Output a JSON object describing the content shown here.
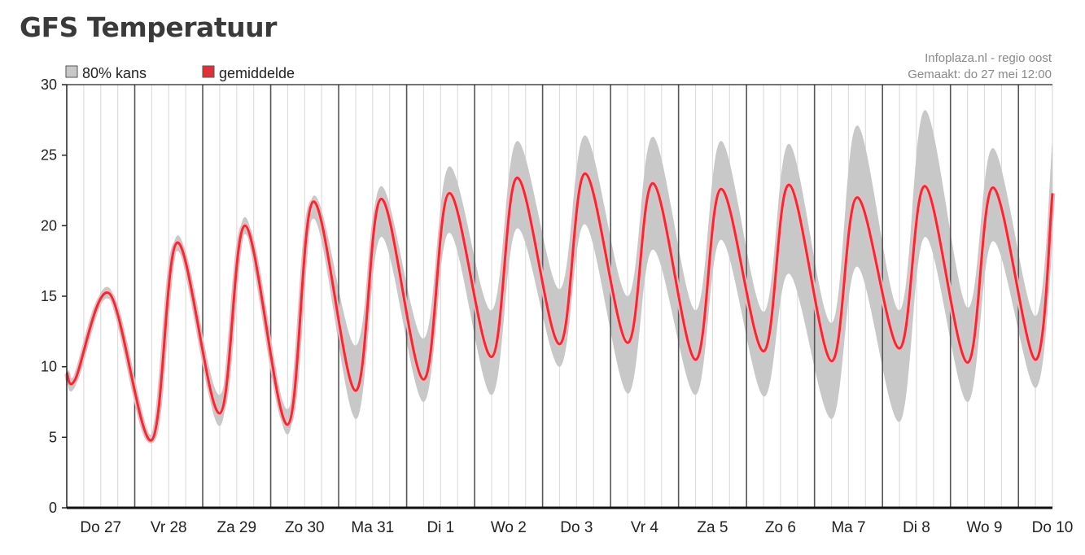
{
  "page": {
    "title": "GFS Temperatuur"
  },
  "chart_data": {
    "type": "area",
    "title": "GFS Temperatuur",
    "xlabel": "",
    "ylabel": "",
    "ylim": [
      0,
      30
    ],
    "xlim": [
      "2021-05-27T00:00",
      "2021-06-10T12:00"
    ],
    "y_ticks": [
      0,
      5,
      10,
      15,
      20,
      25,
      30
    ],
    "categories": [
      "Do 27",
      "Vr 28",
      "Za 29",
      "Zo 30",
      "Ma 31",
      "Di 1",
      "Wo 2",
      "Do 3",
      "Vr 4",
      "Za 5",
      "Zo 6",
      "Ma 7",
      "Di 8",
      "Wo 9",
      "Do 10"
    ],
    "grid": true,
    "legend_position": "top-left",
    "colors": {
      "band": "#c8c8c8",
      "mean": "#e0303a",
      "mean_halo": "#f2b8bd",
      "grid_day": "#555555",
      "grid_minor": "#dddddd"
    },
    "series": [
      {
        "name": "80% kans",
        "kind": "band",
        "points": [
          {
            "x": "2021-05-27T00:00",
            "low": 9.0,
            "high": 10.0
          },
          {
            "x": "2021-05-27T03:00",
            "low": 8.6,
            "high": 9.5
          },
          {
            "x": "2021-05-27T15:00",
            "low": 14.8,
            "high": 15.6
          },
          {
            "x": "2021-05-28T06:00",
            "low": 4.6,
            "high": 5.2
          },
          {
            "x": "2021-05-28T15:00",
            "low": 18.2,
            "high": 19.3
          },
          {
            "x": "2021-05-29T06:00",
            "low": 5.8,
            "high": 8.0
          },
          {
            "x": "2021-05-29T15:00",
            "low": 19.4,
            "high": 20.6
          },
          {
            "x": "2021-05-30T06:00",
            "low": 5.2,
            "high": 7.0
          },
          {
            "x": "2021-05-30T15:00",
            "low": 20.5,
            "high": 22.1
          },
          {
            "x": "2021-05-31T06:00",
            "low": 6.3,
            "high": 11.5
          },
          {
            "x": "2021-05-31T15:00",
            "low": 19.2,
            "high": 22.8
          },
          {
            "x": "2021-06-01T06:00",
            "low": 7.5,
            "high": 12.0
          },
          {
            "x": "2021-06-01T15:00",
            "low": 19.5,
            "high": 24.2
          },
          {
            "x": "2021-06-02T06:00",
            "low": 8.0,
            "high": 14.0
          },
          {
            "x": "2021-06-02T15:00",
            "low": 19.8,
            "high": 26.0
          },
          {
            "x": "2021-06-03T06:00",
            "low": 10.0,
            "high": 15.5
          },
          {
            "x": "2021-06-03T15:00",
            "low": 20.1,
            "high": 26.4
          },
          {
            "x": "2021-06-04T06:00",
            "low": 8.1,
            "high": 15.0
          },
          {
            "x": "2021-06-04T15:00",
            "low": 18.3,
            "high": 26.3
          },
          {
            "x": "2021-06-05T06:00",
            "low": 8.0,
            "high": 14.0
          },
          {
            "x": "2021-06-05T15:00",
            "low": 19.0,
            "high": 26.0
          },
          {
            "x": "2021-06-06T06:00",
            "low": 7.9,
            "high": 13.9
          },
          {
            "x": "2021-06-06T15:00",
            "low": 16.6,
            "high": 25.8
          },
          {
            "x": "2021-06-07T06:00",
            "low": 6.3,
            "high": 13.1
          },
          {
            "x": "2021-06-07T15:00",
            "low": 17.1,
            "high": 27.1
          },
          {
            "x": "2021-06-08T06:00",
            "low": 6.1,
            "high": 14.0
          },
          {
            "x": "2021-06-08T15:00",
            "low": 19.2,
            "high": 28.2
          },
          {
            "x": "2021-06-09T06:00",
            "low": 7.5,
            "high": 14.2
          },
          {
            "x": "2021-06-09T15:00",
            "low": 18.9,
            "high": 25.5
          },
          {
            "x": "2021-06-10T06:00",
            "low": 8.5,
            "high": 13.6
          },
          {
            "x": "2021-06-10T12:00",
            "low": 18.8,
            "high": 26.1
          }
        ]
      },
      {
        "name": "gemiddelde",
        "kind": "line",
        "points": [
          {
            "x": "2021-05-27T00:00",
            "y": 9.6
          },
          {
            "x": "2021-05-27T03:00",
            "y": 9.1
          },
          {
            "x": "2021-05-27T15:00",
            "y": 15.2
          },
          {
            "x": "2021-05-28T06:00",
            "y": 4.8
          },
          {
            "x": "2021-05-28T15:00",
            "y": 18.8
          },
          {
            "x": "2021-05-29T06:00",
            "y": 6.7
          },
          {
            "x": "2021-05-29T15:00",
            "y": 20.0
          },
          {
            "x": "2021-05-30T06:00",
            "y": 5.9
          },
          {
            "x": "2021-05-30T15:00",
            "y": 21.7
          },
          {
            "x": "2021-05-31T06:00",
            "y": 8.3
          },
          {
            "x": "2021-05-31T15:00",
            "y": 21.9
          },
          {
            "x": "2021-06-01T06:00",
            "y": 9.1
          },
          {
            "x": "2021-06-01T15:00",
            "y": 22.3
          },
          {
            "x": "2021-06-02T06:00",
            "y": 10.7
          },
          {
            "x": "2021-06-02T15:00",
            "y": 23.4
          },
          {
            "x": "2021-06-03T06:00",
            "y": 11.6
          },
          {
            "x": "2021-06-03T15:00",
            "y": 23.7
          },
          {
            "x": "2021-06-04T06:00",
            "y": 11.7
          },
          {
            "x": "2021-06-04T15:00",
            "y": 23.0
          },
          {
            "x": "2021-06-05T06:00",
            "y": 10.5
          },
          {
            "x": "2021-06-05T15:00",
            "y": 22.6
          },
          {
            "x": "2021-06-06T06:00",
            "y": 11.1
          },
          {
            "x": "2021-06-06T15:00",
            "y": 22.9
          },
          {
            "x": "2021-06-07T06:00",
            "y": 10.4
          },
          {
            "x": "2021-06-07T15:00",
            "y": 22.0
          },
          {
            "x": "2021-06-08T06:00",
            "y": 11.3
          },
          {
            "x": "2021-06-08T15:00",
            "y": 22.8
          },
          {
            "x": "2021-06-09T06:00",
            "y": 10.3
          },
          {
            "x": "2021-06-09T15:00",
            "y": 22.7
          },
          {
            "x": "2021-06-10T06:00",
            "y": 10.5
          },
          {
            "x": "2021-06-10T12:00",
            "y": 22.3
          }
        ]
      }
    ],
    "annotations": [
      "Infoplaza.nl - regio oost",
      "Gemaakt: do 27 mei 12:00"
    ]
  }
}
